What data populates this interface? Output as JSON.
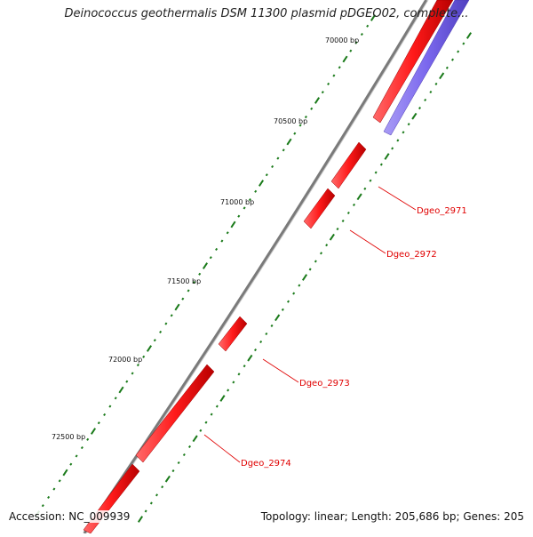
{
  "title": "Deinococcus geothermalis DSM 11300 plasmid pDGEO02, complete...",
  "footer": {
    "accession": "Accession: NC_009939",
    "topology": "Topology: linear; Length: 205,686 bp; Genes: 205"
  },
  "colors": {
    "backbone": "#808080",
    "forward_gene": "#ff1a1a",
    "reverse_gene": "#7b68ee",
    "tick": "#1a7a1a",
    "gene_label": "#e00000",
    "leader": "#e00000"
  },
  "ticks": [
    "70000 bp",
    "70500 bp",
    "71000 bp",
    "71500 bp",
    "72000 bp",
    "72500 bp"
  ],
  "genes": [
    {
      "name": "Dgeo_2971",
      "strand": "forward"
    },
    {
      "name": "Dgeo_2972",
      "strand": "forward"
    },
    {
      "name": "Dgeo_2973",
      "strand": "forward"
    },
    {
      "name": "Dgeo_2974",
      "strand": "forward"
    }
  ]
}
